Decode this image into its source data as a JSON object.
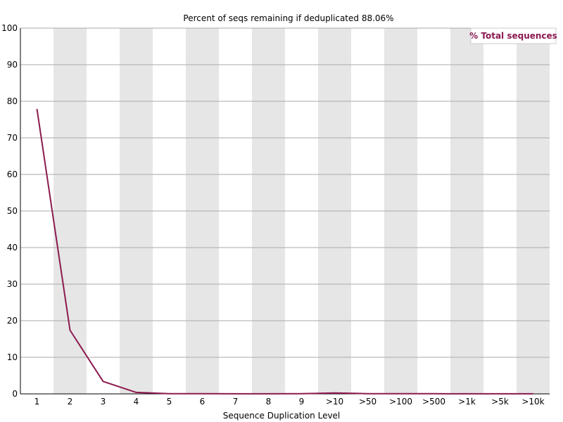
{
  "colors": {
    "line": "#8b1a4f",
    "band": "#e6e6e6",
    "grid": "#aaaaaa",
    "axis": "#000000"
  },
  "chart_data": {
    "type": "line",
    "title": "Percent of seqs remaining if deduplicated 88.06%",
    "xlabel": "Sequence Duplication Level",
    "ylabel": "",
    "ylim": [
      0,
      100
    ],
    "yticks": [
      0,
      10,
      20,
      30,
      40,
      50,
      60,
      70,
      80,
      90,
      100
    ],
    "grid": true,
    "alternating_bands": true,
    "legend_position": "top-right",
    "categories": [
      "1",
      "2",
      "3",
      "4",
      "5",
      "6",
      "7",
      "8",
      "9",
      ">10",
      ">50",
      ">100",
      ">500",
      ">1k",
      ">5k",
      ">10k"
    ],
    "series": [
      {
        "name": "% Total sequences",
        "values": [
          77.9,
          17.4,
          3.4,
          0.4,
          0.05,
          0.03,
          0.02,
          0.02,
          0.03,
          0.25,
          0.05,
          0.03,
          0.03,
          0.02,
          0.02,
          0.02
        ]
      }
    ]
  }
}
